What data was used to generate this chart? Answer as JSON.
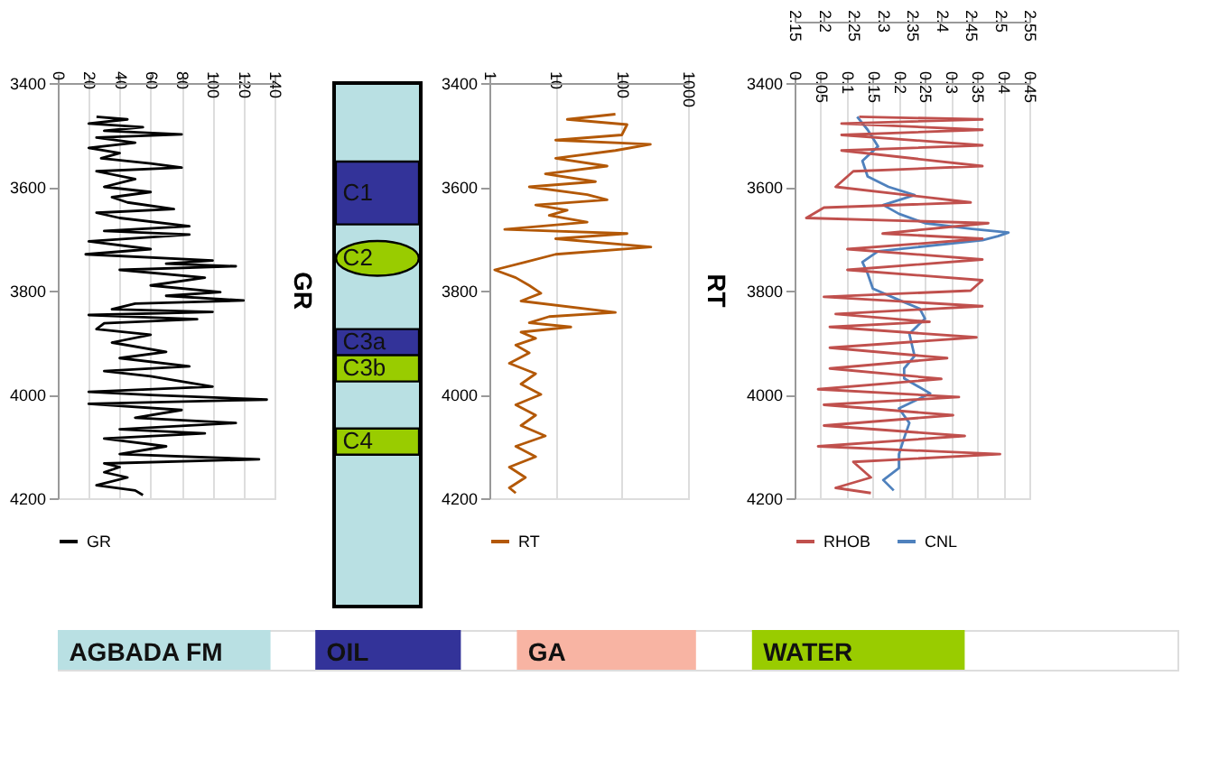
{
  "chart_data": [
    {
      "type": "line",
      "title": "GR",
      "orientation": "horizontal",
      "xlim": [
        0,
        140
      ],
      "xticks": [
        0,
        20,
        40,
        60,
        80,
        100,
        120,
        140
      ],
      "ylim": [
        4200,
        3400
      ],
      "yticks": [
        3400,
        3600,
        3800,
        4000,
        4200
      ],
      "grid": "x",
      "legend": "bottom",
      "series": [
        {
          "name": "GR",
          "color": "#000000",
          "x": [
            3465,
            3470,
            3478,
            3485,
            3492,
            3499,
            3505,
            3515,
            3525,
            3535,
            3545,
            3555,
            3563,
            3570,
            3585,
            3600,
            3610,
            3620,
            3630,
            3643,
            3650,
            3660,
            3676,
            3685,
            3692,
            3705,
            3720,
            3730,
            3742,
            3748,
            3753,
            3760,
            3775,
            3790,
            3803,
            3810,
            3819,
            3825,
            3836,
            3841,
            3847,
            3855,
            3863,
            3874,
            3885,
            3900,
            3918,
            3930,
            3946,
            3955,
            3965,
            3985,
            3995,
            4001,
            4010,
            4018,
            4030,
            4045,
            4055,
            4067,
            4075,
            4085,
            4100,
            4115,
            4125,
            4133,
            4140,
            4150,
            4160,
            4175,
            4185,
            4194
          ],
          "values": [
            25,
            45,
            20,
            55,
            30,
            80,
            25,
            50,
            20,
            40,
            28,
            60,
            80,
            25,
            50,
            30,
            60,
            35,
            45,
            75,
            25,
            40,
            85,
            30,
            85,
            20,
            60,
            18,
            100,
            70,
            115,
            40,
            95,
            60,
            105,
            70,
            120,
            50,
            35,
            100,
            20,
            90,
            30,
            25,
            60,
            35,
            70,
            40,
            85,
            30,
            60,
            100,
            20,
            60,
            135,
            20,
            80,
            50,
            115,
            40,
            95,
            30,
            70,
            40,
            130,
            30,
            40,
            30,
            45,
            25,
            50,
            55
          ]
        }
      ]
    },
    {
      "type": "other",
      "color": "#b9e0e3",
      "categories": [
        "C1",
        "C2",
        "C3a",
        "C3b",
        "C4"
      ],
      "colors": [
        "#333399",
        "#99cc00",
        "#333399",
        "#99cc00",
        "#99cc00"
      ]
    },
    {
      "type": "line",
      "title": "RT",
      "orientation": "horizontal",
      "log": "x",
      "xlim": [
        1,
        1000
      ],
      "xticks": [
        1,
        10,
        100,
        1000
      ],
      "ylim": [
        4200,
        3400
      ],
      "yticks": [
        3400,
        3600,
        3800,
        4000,
        4200
      ],
      "grid": "x",
      "legend": "bottom",
      "series": [
        {
          "name": "RT",
          "color": "#b35806",
          "x": [
            3460,
            3470,
            3480,
            3500,
            3510,
            3518,
            3530,
            3545,
            3560,
            3575,
            3590,
            3600,
            3615,
            3625,
            3635,
            3645,
            3655,
            3668,
            3682,
            3690,
            3700,
            3716,
            3730,
            3745,
            3760,
            3775,
            3790,
            3805,
            3820,
            3842,
            3850,
            3862,
            3870,
            3880,
            3892,
            3905,
            3920,
            3940,
            3960,
            3980,
            4000,
            4020,
            4040,
            4060,
            4080,
            4100,
            4120,
            4140,
            4160,
            4180,
            4190
          ],
          "values": [
            80,
            15,
            120,
            100,
            10,
            270,
            80,
            10,
            60,
            7,
            40,
            4,
            30,
            60,
            5,
            15,
            8,
            30,
            1.7,
            120,
            10,
            275,
            10,
            3.5,
            1.2,
            2.5,
            4,
            6,
            3,
            80,
            8,
            4,
            17,
            3,
            5,
            2.5,
            4,
            2,
            5,
            3,
            6,
            2.5,
            5,
            3,
            7,
            2.5,
            5,
            2,
            3.5,
            2,
            2.5
          ]
        }
      ]
    },
    {
      "type": "line",
      "orientation": "horizontal",
      "xlim": [
        0,
        0.45
      ],
      "xticks": [
        0,
        0.05,
        0.1,
        0.15,
        0.2,
        0.25,
        0.3,
        0.35,
        0.4,
        0.45
      ],
      "x2lim": [
        2.15,
        2.55
      ],
      "x2ticks": [
        2.15,
        2.2,
        2.25,
        2.3,
        2.35,
        2.4,
        2.45,
        2.5,
        2.55
      ],
      "ylim": [
        4200,
        3400
      ],
      "yticks": [
        3400,
        3600,
        3800,
        4000,
        4200
      ],
      "grid": "x",
      "legend": "bottom",
      "series": [
        {
          "name": "RHOB",
          "color": "#c0504d",
          "axis": "x2",
          "x": [
            3465,
            3470,
            3478,
            3490,
            3500,
            3520,
            3530,
            3560,
            3570,
            3600,
            3630,
            3640,
            3660,
            3670,
            3690,
            3700,
            3720,
            3740,
            3760,
            3780,
            3800,
            3812,
            3830,
            3845,
            3860,
            3870,
            3890,
            3910,
            3930,
            3950,
            3970,
            3990,
            4005,
            4020,
            4040,
            4060,
            4080,
            4100,
            4115,
            4130,
            4160,
            4180,
            4190
          ],
          "values": [
            2.26,
            2.47,
            2.23,
            2.47,
            2.23,
            2.47,
            2.23,
            2.47,
            2.25,
            2.22,
            2.45,
            2.2,
            2.17,
            2.48,
            2.3,
            2.47,
            2.24,
            2.47,
            2.24,
            2.47,
            2.45,
            2.2,
            2.47,
            2.22,
            2.38,
            2.21,
            2.46,
            2.21,
            2.41,
            2.21,
            2.4,
            2.19,
            2.43,
            2.2,
            2.42,
            2.2,
            2.44,
            2.19,
            2.5,
            2.25,
            2.28,
            2.22,
            2.28
          ]
        },
        {
          "name": "CNL",
          "color": "#4f81bd",
          "x": [
            3465,
            3490,
            3522,
            3550,
            3580,
            3600,
            3616,
            3635,
            3652,
            3670,
            3681,
            3688,
            3695,
            3703,
            3724,
            3745,
            3767,
            3796,
            3818,
            3835,
            3854,
            3883,
            3926,
            3950,
            3969,
            3998,
            4027,
            4055,
            4084,
            4115,
            4142,
            4165,
            4185
          ],
          "values": [
            0.12,
            0.14,
            0.16,
            0.13,
            0.14,
            0.18,
            0.23,
            0.17,
            0.2,
            0.25,
            0.34,
            0.41,
            0.39,
            0.36,
            0.16,
            0.13,
            0.14,
            0.15,
            0.2,
            0.24,
            0.25,
            0.22,
            0.23,
            0.21,
            0.21,
            0.26,
            0.2,
            0.22,
            0.21,
            0.2,
            0.2,
            0.17,
            0.19
          ]
        }
      ]
    },
    {
      "type": "other",
      "categories": [
        "AGBADA FM",
        "OIL",
        "GA",
        "WATER"
      ],
      "colors": [
        "#b9e0e3",
        "#333399",
        "#f8b4a3",
        "#99cc00"
      ]
    }
  ]
}
